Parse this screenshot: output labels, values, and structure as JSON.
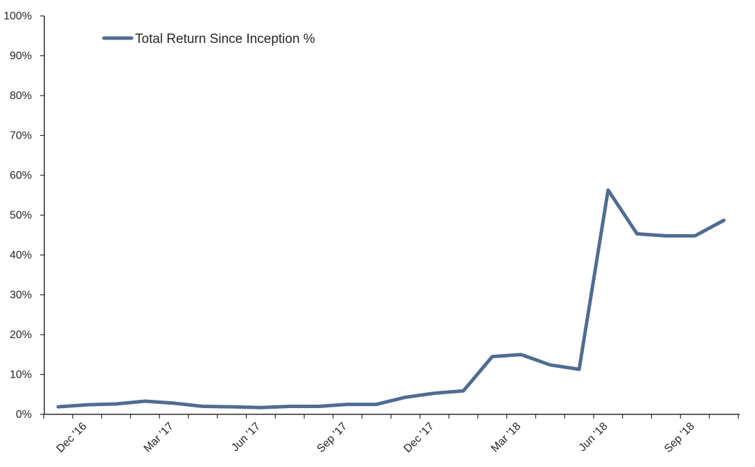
{
  "chart_data": {
    "type": "line",
    "title": "",
    "xlabel": "",
    "ylabel": "",
    "ylim": [
      0,
      100
    ],
    "y_ticks": [
      "0%",
      "10%",
      "20%",
      "30%",
      "40%",
      "50%",
      "60%",
      "70%",
      "80%",
      "90%",
      "100%"
    ],
    "x_tick_labels": [
      "Dec '16",
      "Mar '17",
      "Jun '17",
      "Sep '17",
      "Dec '17",
      "Mar '18",
      "Jun '18",
      "Sep '18"
    ],
    "grid": false,
    "legend_position": "top-left",
    "colors": {
      "series": "#4f6d8f",
      "axis": "#262626",
      "text": "#262626"
    },
    "series": [
      {
        "name": "Total Return Since Inception %",
        "values": [
          1.9,
          2.4,
          2.6,
          3.3,
          2.8,
          2.0,
          1.9,
          1.7,
          2.0,
          2.0,
          2.5,
          2.5,
          4.3,
          5.3,
          5.9,
          14.5,
          15.0,
          12.4,
          11.3,
          56.3,
          45.3,
          44.8,
          44.8,
          48.7
        ]
      }
    ]
  }
}
